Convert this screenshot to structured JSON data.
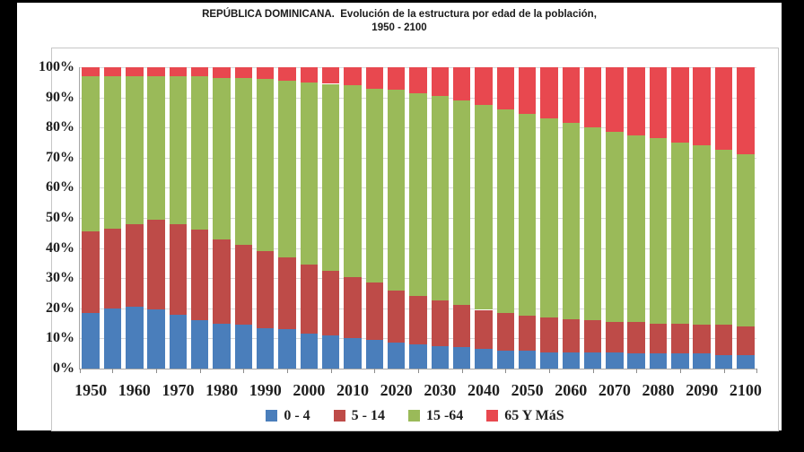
{
  "title": {
    "line1": "REPÚBLICA DOMINICANA.  Evolución de la estructura por edad de la población,",
    "line2": "1950 - 2100"
  },
  "colors": {
    "series_0_4": "#4a7ebb",
    "series_5_14": "#be4b48",
    "series_15_64": "#9aba59",
    "series_65_mas": "#e8484f",
    "gridline": "#d9d9d9",
    "axis": "#a6a6a6",
    "text": "#1f1f1f",
    "frame": "#000000",
    "paper": "#ffffff"
  },
  "chart_data": {
    "type": "bar",
    "stacked": true,
    "percent_stacked": true,
    "title": "REPÚBLICA DOMINICANA. Evolución de la estructura por edad de la población, 1950 - 2100",
    "xlabel": "",
    "ylabel": "",
    "ylim": [
      0,
      100
    ],
    "grid": true,
    "legend_position": "bottom",
    "categories": [
      1950,
      1955,
      1960,
      1965,
      1970,
      1975,
      1980,
      1985,
      1990,
      1995,
      2000,
      2005,
      2010,
      2015,
      2020,
      2025,
      2030,
      2035,
      2040,
      2045,
      2050,
      2055,
      2060,
      2065,
      2070,
      2075,
      2080,
      2085,
      2090,
      2095,
      2100
    ],
    "x_tick_labels": [
      "1950",
      "1960",
      "1970",
      "1980",
      "1990",
      "2000",
      "2010",
      "2020",
      "2030",
      "2040",
      "2050",
      "2060",
      "2070",
      "2080",
      "2090",
      "2100"
    ],
    "y_tick_labels": [
      "0%",
      "10%",
      "20%",
      "30%",
      "40%",
      "50%",
      "60%",
      "70%",
      "80%",
      "90%",
      "100%"
    ],
    "series": [
      {
        "name": "0 - 4",
        "color": "#4a7ebb",
        "values": [
          18.5,
          20.0,
          20.5,
          19.5,
          18.0,
          16.0,
          15.0,
          14.5,
          13.5,
          13.0,
          11.5,
          11.0,
          10.0,
          9.5,
          8.5,
          8.0,
          7.5,
          7.0,
          6.5,
          6.0,
          6.0,
          5.5,
          5.5,
          5.5,
          5.5,
          5.0,
          5.0,
          5.0,
          5.0,
          4.5,
          4.5
        ]
      },
      {
        "name": "5 - 14",
        "color": "#be4b48",
        "values": [
          27.0,
          26.5,
          27.5,
          30.0,
          30.0,
          30.0,
          28.0,
          26.5,
          25.5,
          24.0,
          23.0,
          21.5,
          20.5,
          19.0,
          17.5,
          16.0,
          15.0,
          14.0,
          13.0,
          12.5,
          11.5,
          11.5,
          11.0,
          10.5,
          10.0,
          10.5,
          10.0,
          10.0,
          9.5,
          10.0,
          9.5
        ]
      },
      {
        "name": "15 -64",
        "color": "#9aba59",
        "values": [
          51.5,
          50.5,
          49.0,
          47.5,
          49.0,
          51.0,
          53.5,
          55.5,
          57.0,
          58.5,
          60.5,
          62.0,
          63.5,
          64.5,
          66.5,
          67.5,
          68.0,
          68.0,
          68.0,
          67.5,
          67.0,
          66.0,
          65.0,
          64.0,
          63.0,
          62.0,
          61.5,
          60.0,
          59.5,
          58.0,
          57.0
        ]
      },
      {
        "name": "65 Y MáS",
        "color": "#e8484f",
        "values": [
          3.0,
          3.0,
          3.0,
          3.0,
          3.0,
          3.0,
          3.5,
          3.5,
          4.0,
          4.5,
          5.0,
          5.5,
          6.0,
          7.0,
          7.5,
          8.5,
          9.5,
          11.0,
          12.5,
          14.0,
          15.5,
          17.0,
          18.5,
          20.0,
          21.5,
          22.5,
          23.5,
          25.0,
          26.0,
          27.5,
          29.0
        ]
      }
    ]
  }
}
